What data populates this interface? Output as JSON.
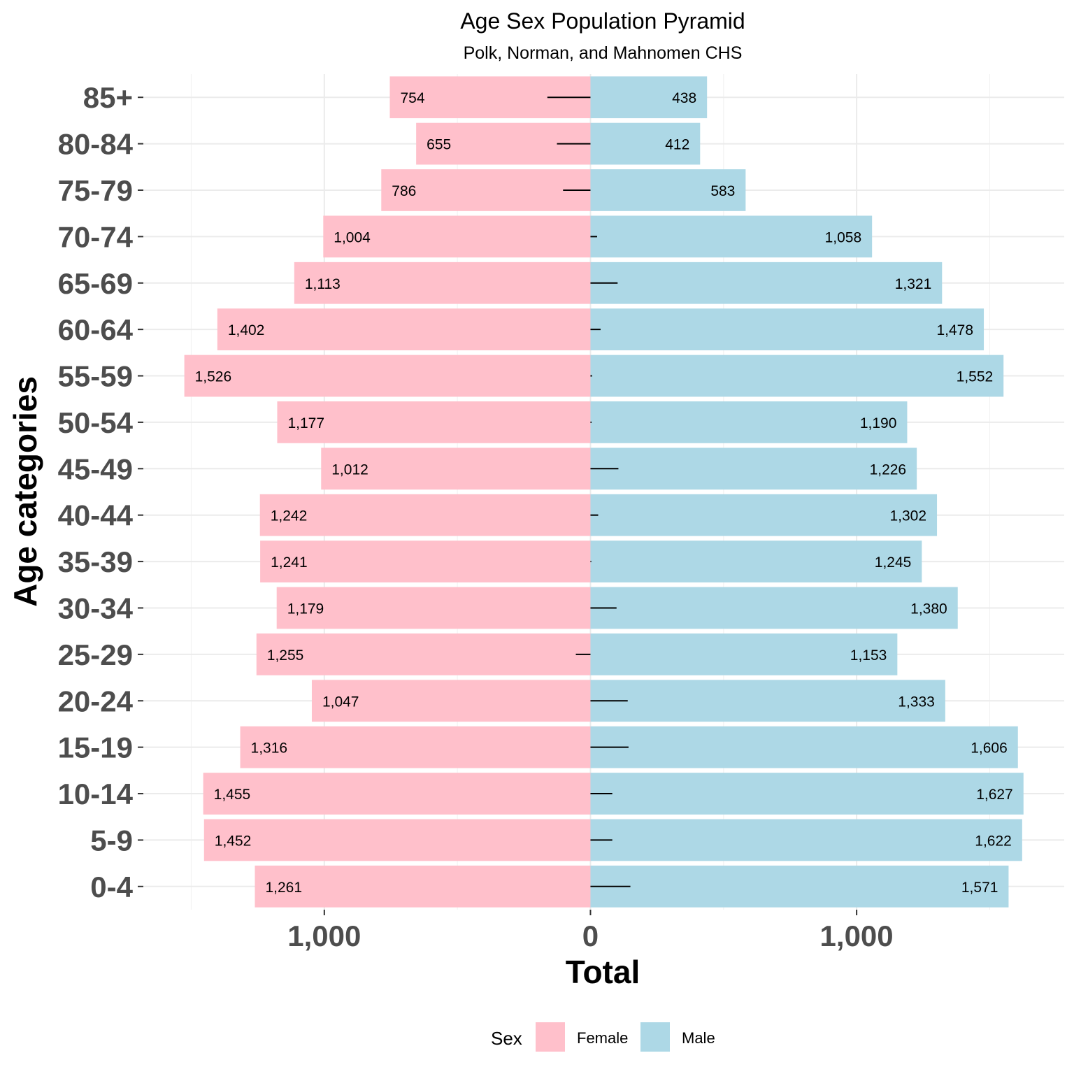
{
  "chart_data": {
    "type": "bar",
    "orientation": "horizontal",
    "title": "Age Sex Population Pyramid",
    "subtitle": "Polk, Norman, and Mahnomen CHS",
    "xlabel": "Total",
    "ylabel": "Age categories",
    "categories": [
      "0-4",
      "5-9",
      "10-14",
      "15-19",
      "20-24",
      "25-29",
      "30-34",
      "35-39",
      "40-44",
      "45-49",
      "50-54",
      "55-59",
      "60-64",
      "65-69",
      "70-74",
      "75-79",
      "80-84",
      "85+"
    ],
    "series": [
      {
        "name": "Female",
        "color": "#ffc0cb",
        "direction": "left",
        "values": [
          1261,
          1452,
          1455,
          1316,
          1047,
          1255,
          1179,
          1241,
          1242,
          1012,
          1177,
          1526,
          1402,
          1113,
          1004,
          786,
          655,
          754
        ],
        "labels": [
          "1,261",
          "1,452",
          "1,455",
          "1,316",
          "1,047",
          "1,255",
          "1,179",
          "1,241",
          "1,242",
          "1,012",
          "1,177",
          "1,526",
          "1,402",
          "1,113",
          "1,004",
          "786",
          "655",
          "754"
        ]
      },
      {
        "name": "Male",
        "color": "#add8e6",
        "direction": "right",
        "values": [
          1571,
          1622,
          1627,
          1606,
          1333,
          1153,
          1380,
          1245,
          1302,
          1226,
          1190,
          1552,
          1478,
          1321,
          1058,
          583,
          412,
          438
        ],
        "labels": [
          "1,571",
          "1,622",
          "1,627",
          "1,606",
          "1,333",
          "1,153",
          "1,380",
          "1,245",
          "1,302",
          "1,226",
          "1,190",
          "1,552",
          "1,478",
          "1,321",
          "1,058",
          "583",
          "412",
          "438"
        ]
      }
    ],
    "difference_segments": [
      150,
      82,
      82,
      143,
      140,
      -55,
      98,
      3,
      29,
      105,
      4,
      6,
      38,
      102,
      25,
      -103,
      -126,
      -162
    ],
    "xticks": [
      {
        "value": -1000,
        "label": "1,000"
      },
      {
        "value": 0,
        "label": "0"
      },
      {
        "value": 1000,
        "label": "1,000"
      }
    ],
    "xlim": [
      -1680,
      1780
    ],
    "grid": true,
    "legend": {
      "title": "Sex",
      "position": "bottom",
      "items": [
        "Female",
        "Male"
      ]
    }
  }
}
